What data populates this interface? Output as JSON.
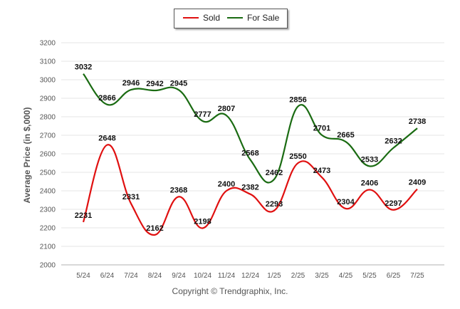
{
  "chart_data": {
    "type": "line",
    "categories": [
      "5/24",
      "6/24",
      "7/24",
      "8/24",
      "9/24",
      "10/24",
      "11/24",
      "12/24",
      "1/25",
      "2/25",
      "3/25",
      "4/25",
      "5/25",
      "6/25",
      "7/25"
    ],
    "series": [
      {
        "name": "Sold",
        "color": "#e01010",
        "values": [
          2231,
          2648,
          2331,
          2162,
          2368,
          2198,
          2400,
          2382,
          2293,
          2550,
          2473,
          2304,
          2406,
          2297,
          2409
        ]
      },
      {
        "name": "For Sale",
        "color": "#1a6b12",
        "values": [
          3032,
          2866,
          2946,
          2942,
          2945,
          2777,
          2807,
          2568,
          2462,
          2856,
          2701,
          2665,
          2533,
          2632,
          2738
        ]
      }
    ],
    "ylabel": "Average Price (in $,000)",
    "ylim": [
      2000,
      3200
    ],
    "yticks": [
      2000,
      2100,
      2200,
      2300,
      2400,
      2500,
      2600,
      2700,
      2800,
      2900,
      3000,
      3100,
      3200
    ],
    "grid": true,
    "legend": "top-center"
  },
  "legend": {
    "sold": "Sold",
    "for_sale": "For Sale"
  },
  "footer": {
    "copyright": "Copyright © Trendgraphix, Inc."
  }
}
